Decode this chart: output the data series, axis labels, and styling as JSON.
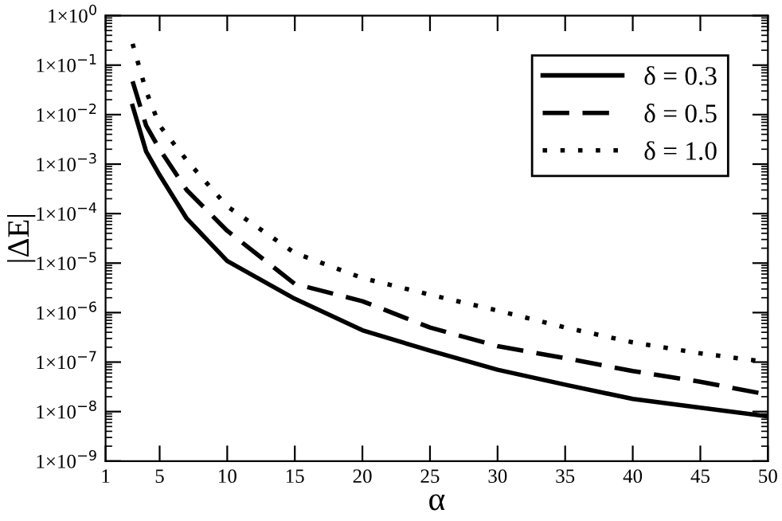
{
  "chart_data": {
    "type": "line",
    "xlabel": "α",
    "ylabel": "|ΔE|",
    "log": "y",
    "x": [
      3,
      4,
      5,
      7,
      10,
      15,
      20,
      25,
      30,
      35,
      40,
      45,
      50
    ],
    "series": [
      {
        "name": "δ = 0.3",
        "color": "#000000",
        "line_style": "solid",
        "values": [
          0.015,
          0.0018,
          0.0006,
          8e-05,
          1.1e-05,
          1.9e-06,
          4.4e-07,
          1.7e-07,
          7e-08,
          3.5e-08,
          1.8e-08,
          1.2e-08,
          8e-09
        ]
      },
      {
        "name": "δ = 0.5",
        "color": "#000000",
        "line_style": "dashed",
        "values": [
          0.047,
          0.006,
          0.002,
          0.0003,
          4.5e-05,
          3.8e-06,
          1.7e-06,
          5e-07,
          2.1e-07,
          1.2e-07,
          6.6e-08,
          4e-08,
          2.2e-08
        ]
      },
      {
        "name": "δ = 1.0",
        "color": "#000000",
        "line_style": "dotted",
        "values": [
          0.27,
          0.03,
          0.006,
          0.0012,
          0.00014,
          1.6e-05,
          5e-06,
          2.3e-06,
          1.1e-06,
          5e-07,
          2.5e-07,
          1.5e-07,
          1e-07
        ]
      }
    ],
    "xlim": [
      1,
      50
    ],
    "xticks": [
      1,
      5,
      10,
      15,
      20,
      25,
      30,
      35,
      40,
      45,
      50
    ],
    "ylim": [
      1e-09,
      1
    ],
    "yticks": [
      {
        "value": 1e-09,
        "label": "1×10$^{−9}$"
      },
      {
        "value": 1e-08,
        "label": "1×10$^{−8}$"
      },
      {
        "value": 1e-07,
        "label": "1×10$^{−7}$"
      },
      {
        "value": 1e-06,
        "label": "1×10$^{−6}$"
      },
      {
        "value": 1e-05,
        "label": "1×10$^{−5}$"
      },
      {
        "value": 0.0001,
        "label": "1×10$^{−4}$"
      },
      {
        "value": 0.001,
        "label": "1×10$^{−3}$"
      },
      {
        "value": 0.01,
        "label": "1×10$^{−2}$"
      },
      {
        "value": 0.1,
        "label": "1×10$^{−1}$"
      },
      {
        "value": 1,
        "label": "1×10$^{0}$"
      }
    ],
    "grid": false,
    "legend": "top right",
    "marker": "none"
  }
}
